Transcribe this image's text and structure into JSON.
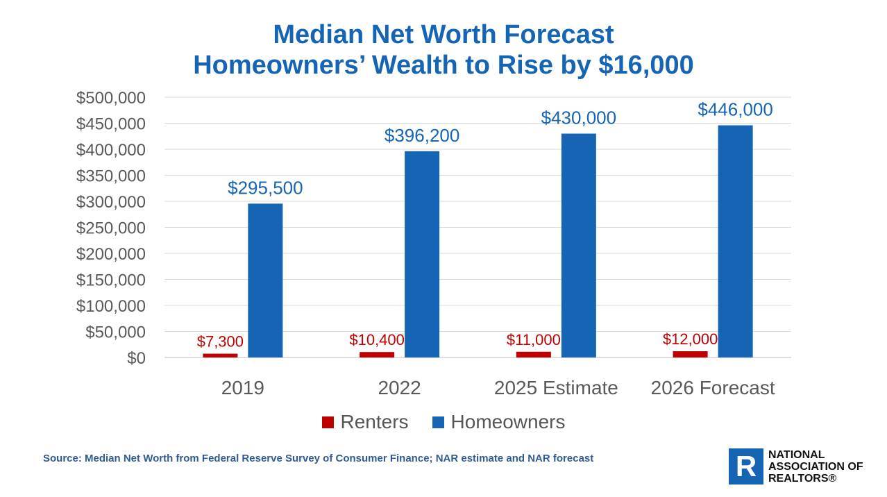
{
  "title": {
    "line1": "Median Net Worth Forecast",
    "line2": "Homeowners’ Wealth to Rise by $16,000"
  },
  "source": "Source: Median Net Worth from Federal Reserve Survey of Consumer Finance; NAR estimate and NAR forecast",
  "logo": {
    "icon": "realtor-r-icon",
    "line1": "NATIONAL",
    "line2": "ASSOCIATION OF",
    "line3": "REALTORS®"
  },
  "colors": {
    "title": "#1565b4",
    "renters": "#c00000",
    "homeowners": "#1565b4",
    "axis_text": "#595959",
    "grid": "#d9d9d9"
  },
  "chart_data": {
    "type": "bar",
    "categories": [
      "2019",
      "2022",
      "2025 Estimate",
      "2026 Forecast"
    ],
    "series": [
      {
        "name": "Renters",
        "values": [
          7300,
          10400,
          11000,
          12000
        ],
        "labels": [
          "$7,300",
          "$10,400",
          "$11,000",
          "$12,000"
        ]
      },
      {
        "name": "Homeowners",
        "values": [
          295500,
          396200,
          430000,
          446000
        ],
        "labels": [
          "$295,500",
          "$396,200",
          "$430,000",
          "$446,000"
        ]
      }
    ],
    "ylim": [
      0,
      500000
    ],
    "yticks": [
      "$0",
      "$50,000",
      "$100,000",
      "$150,000",
      "$200,000",
      "$250,000",
      "$300,000",
      "$350,000",
      "$400,000",
      "$450,000",
      "$500,000"
    ],
    "grid": true,
    "legend": "bottom"
  }
}
